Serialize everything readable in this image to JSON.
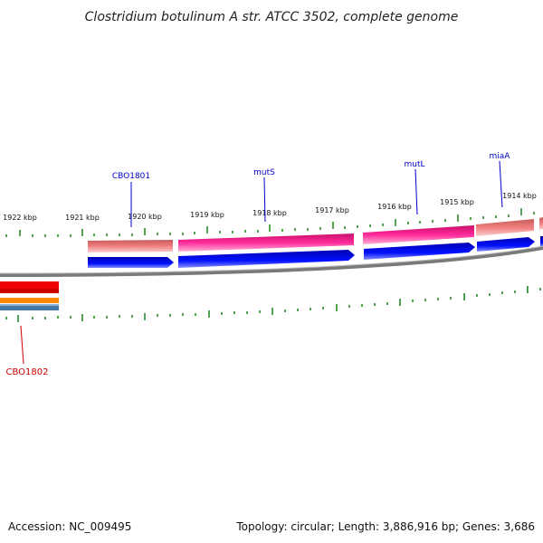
{
  "title": "Clostridium botulinum A str. ATCC 3502, complete genome",
  "footer": {
    "accession": "Accession: NC_009495",
    "summary": "Topology: circular; Length: 3,886,916 bp; Genes: 3,686"
  },
  "scale_labels": [
    "1922 kbp",
    "1921 kbp",
    "1920 kbp",
    "1919 kbp",
    "1918 kbp",
    "1917 kbp",
    "1916 kbp",
    "1915 kbp",
    "1914 kbp"
  ],
  "genes_top": [
    "CBO1801",
    "mutS",
    "mutL",
    "miaA"
  ],
  "genes_bottom": [
    "CBO1802"
  ],
  "colors": {
    "backbone": "#8a8a8a",
    "tick": "#2a8a2a",
    "gene_label_top": "#0000cc",
    "gene_label_bottom": "#cc0000",
    "cds_forward": "#0000ee",
    "feature_pink": "#ee1188",
    "feature_salmon": "#e07070",
    "feature_red": "#ee0000",
    "feature_orange": "#ff8800",
    "feature_steel": "#4477aa"
  }
}
